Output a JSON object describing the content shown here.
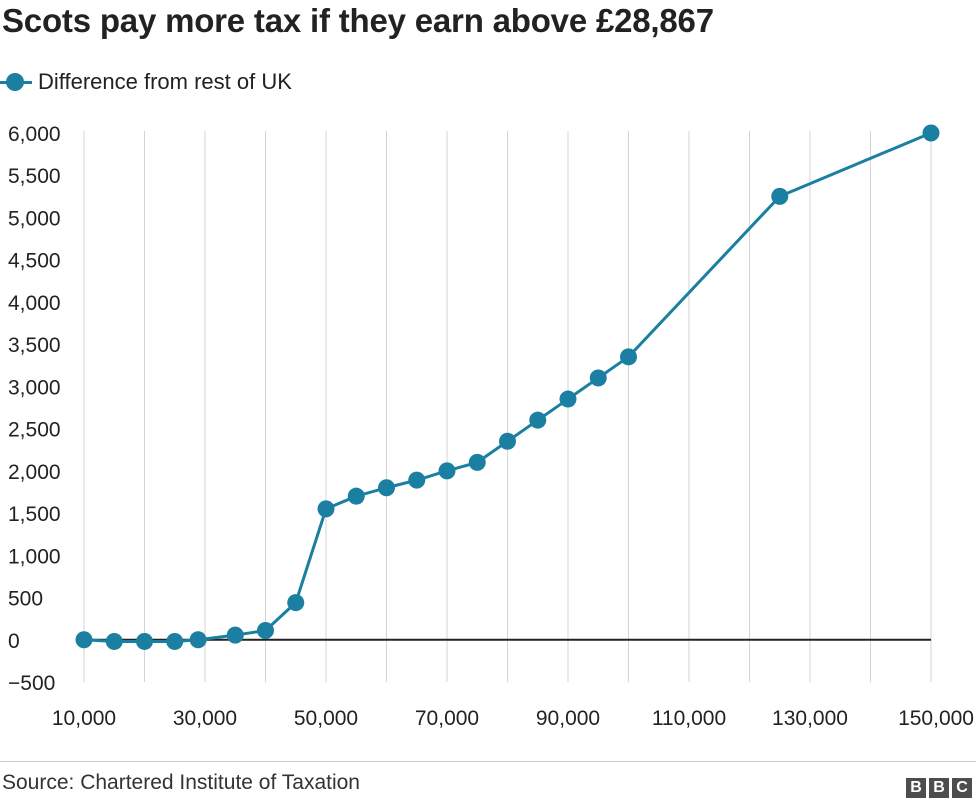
{
  "title": "Scots pay more tax if they earn above £28,867",
  "source": "Source: Chartered Institute of Taxation",
  "logo": [
    "B",
    "B",
    "C"
  ],
  "chart_data": {
    "type": "line",
    "title": "Scots pay more tax if they earn above £28,867",
    "xlabel": "",
    "ylabel": "",
    "xlim": [
      10000,
      150000
    ],
    "ylim": [
      -500,
      6000
    ],
    "x_ticks": [
      10000,
      30000,
      50000,
      70000,
      90000,
      110000,
      130000,
      150000
    ],
    "x_tick_labels": [
      "10,000",
      "30,000",
      "50,000",
      "70,000",
      "90,000",
      "110,000",
      "130,000",
      "150,000"
    ],
    "y_ticks": [
      -500,
      0,
      500,
      1000,
      1500,
      2000,
      2500,
      3000,
      3500,
      4000,
      4500,
      5000,
      5500,
      6000
    ],
    "y_tick_labels": [
      "−500",
      "0",
      "500",
      "1,000",
      "1,500",
      "2,000",
      "2,500",
      "3,000",
      "3,500",
      "4,000",
      "4,500",
      "5,000",
      "5,500",
      "6,000"
    ],
    "vertical_gridlines_every": 10000,
    "legend_position": "top-left",
    "series": [
      {
        "name": "Difference from rest of UK",
        "color": "#1a7fa0",
        "x": [
          10000,
          15000,
          20000,
          25000,
          28867,
          35000,
          40000,
          45000,
          50000,
          55000,
          60000,
          65000,
          70000,
          75000,
          80000,
          85000,
          90000,
          95000,
          100000,
          125000,
          150000
        ],
        "y": [
          0,
          -20,
          -20,
          -20,
          0,
          55,
          110,
          440,
          1550,
          1700,
          1800,
          1890,
          2000,
          2100,
          2350,
          2600,
          2850,
          3100,
          3350,
          5250,
          6000
        ]
      }
    ]
  }
}
